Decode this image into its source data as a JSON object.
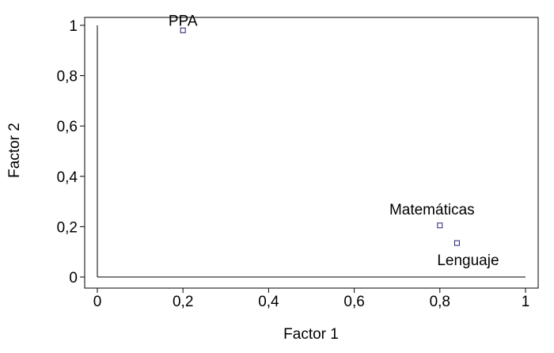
{
  "chart_data": {
    "type": "scatter",
    "title": "",
    "xlabel": "Factor 1",
    "ylabel": "Factor 2",
    "xlim": [
      0,
      1
    ],
    "ylim": [
      0,
      1
    ],
    "x_ticks": [
      "0",
      "0,2",
      "0,4",
      "0,6",
      "0,8",
      "1"
    ],
    "y_ticks": [
      "0",
      "0,2",
      "0,4",
      "0,6",
      "0,8",
      "1"
    ],
    "grid": false,
    "marker": "square",
    "marker_color": "#1f1f6e",
    "points": [
      {
        "label": "PPA",
        "x": 0.2,
        "y": 0.98
      },
      {
        "label": "Matemáticas",
        "x": 0.8,
        "y": 0.205
      },
      {
        "label": "Lenguaje",
        "x": 0.84,
        "y": 0.135
      }
    ]
  }
}
